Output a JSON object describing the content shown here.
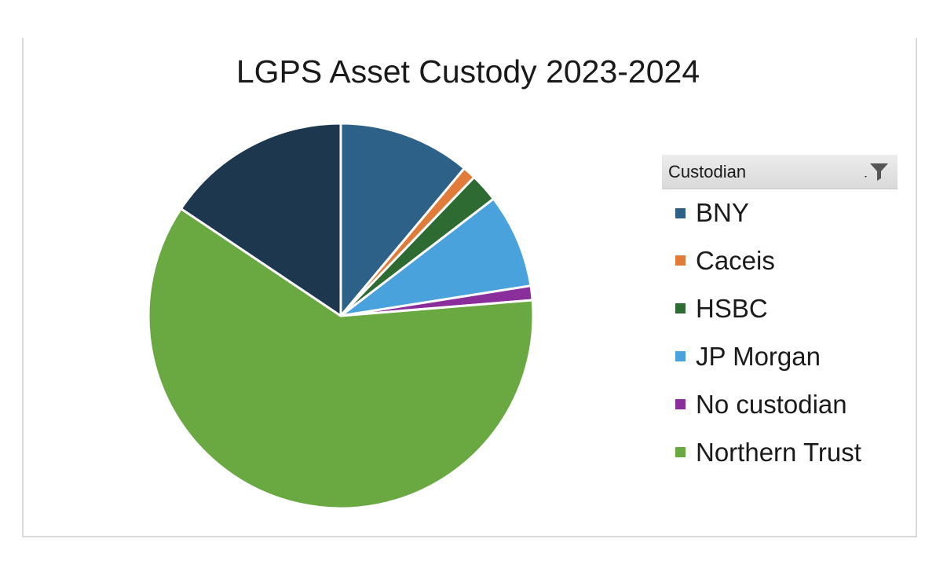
{
  "chart_data": {
    "type": "pie",
    "title": "LGPS Asset Custody 2023-2024",
    "legend_title": "Custodian",
    "legend_position": "right",
    "slices": [
      {
        "label": "BNY",
        "value": 11.1,
        "color": "#2e6188"
      },
      {
        "label": "Caceis",
        "value": 1.1,
        "color": "#e07b39"
      },
      {
        "label": "HSBC",
        "value": 2.4,
        "color": "#2e6b33"
      },
      {
        "label": "JP Morgan",
        "value": 7.9,
        "color": "#4aa2dc"
      },
      {
        "label": "No custodian",
        "value": 1.2,
        "color": "#8a2e9b"
      },
      {
        "label": "Northern Trust",
        "value": 60.7,
        "color": "#6aa842"
      },
      {
        "label": "",
        "value": 15.6,
        "color": "#1c374e"
      }
    ]
  },
  "slicer": {
    "header": "Custodian",
    "filter_icon": "filter-icon"
  }
}
